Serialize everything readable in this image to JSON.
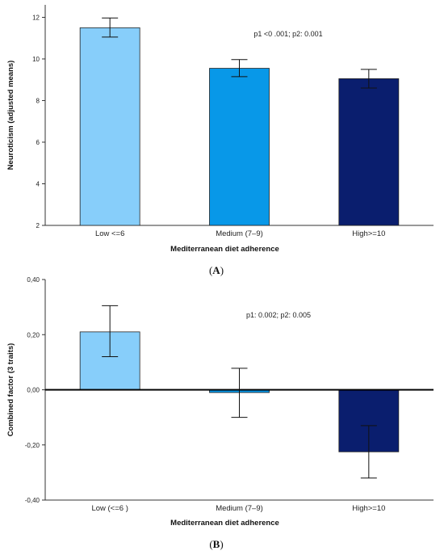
{
  "chart_data": [
    {
      "type": "bar",
      "panel_label": {
        "open": "(",
        "letter": "A",
        "close": ")"
      },
      "categories": [
        "Low <=6",
        "Medium (7–9)",
        "High>=10"
      ],
      "values": [
        11.5,
        9.55,
        9.05
      ],
      "error_low": [
        11.05,
        9.15,
        8.6
      ],
      "error_high": [
        11.97,
        9.97,
        9.5
      ],
      "colors": [
        "#87CEFA",
        "#0898E8",
        "#0A1E6E"
      ],
      "xlabel": "Mediterranean diet adherence",
      "ylabel": "Neuroticism (adjusted means)",
      "ylim": [
        2,
        12.6
      ],
      "yticks": [
        2,
        4,
        6,
        8,
        10,
        12
      ],
      "ytick_labels": [
        "2",
        "4",
        "6",
        "8",
        "10",
        "12"
      ],
      "annotation": "p1 <0 .001; p2: 0.001",
      "grid": false,
      "baseline_zero_line": false
    },
    {
      "type": "bar",
      "panel_label": {
        "open": "(",
        "letter": "B",
        "close": ")"
      },
      "categories": [
        "Low (<=6 )",
        "Medium (7–9)",
        "High>=10"
      ],
      "values": [
        0.21,
        -0.01,
        -0.225
      ],
      "error_low": [
        0.12,
        -0.1,
        -0.32
      ],
      "error_high": [
        0.305,
        0.078,
        -0.13
      ],
      "colors": [
        "#87CEFA",
        "#0898E8",
        "#0A1E6E"
      ],
      "xlabel": "Mediterranean diet adherence",
      "ylabel": "Combined factor (3 traits)",
      "ylim": [
        -0.4,
        0.4
      ],
      "yticks": [
        -0.4,
        -0.2,
        0.0,
        0.2,
        0.4
      ],
      "ytick_labels": [
        "-0,40",
        "-0,20",
        "0,00",
        "0,20",
        "0,40"
      ],
      "annotation": "p1: 0.002;   p2: 0.005",
      "grid": false,
      "baseline_zero_line": true
    }
  ]
}
